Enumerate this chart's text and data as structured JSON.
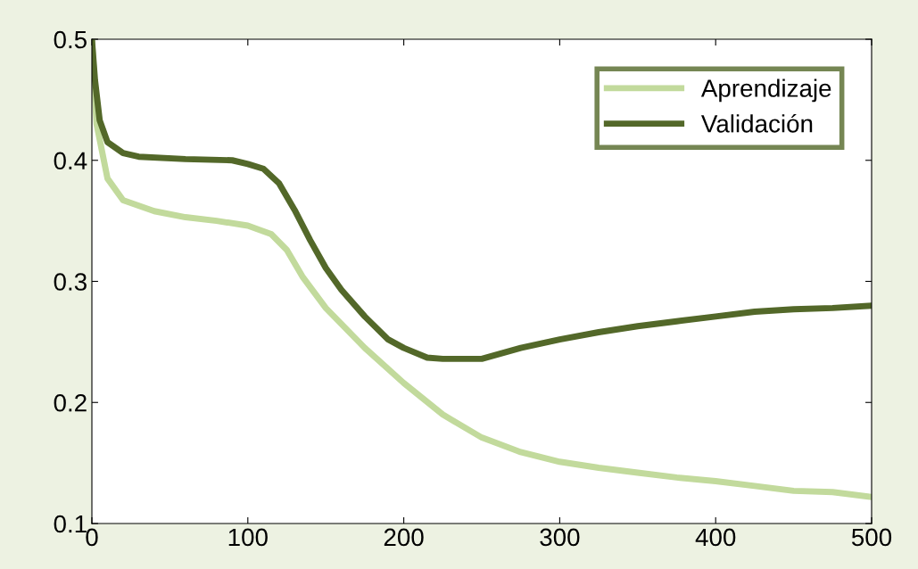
{
  "chart_data": {
    "type": "line",
    "xlim": [
      0,
      500
    ],
    "ylim": [
      0.1,
      0.5
    ],
    "xticks": [
      0,
      100,
      200,
      300,
      400,
      500
    ],
    "yticks": [
      0.1,
      0.2,
      0.3,
      0.4,
      0.5
    ],
    "grid": false,
    "legend": "top right",
    "marker": "none",
    "line_style": "solid",
    "series": [
      {
        "name": "Aprendizaje",
        "color": "#c2da9c",
        "x": [
          0,
          3,
          10,
          20,
          40,
          60,
          80,
          100,
          115,
          125,
          135,
          150,
          175,
          200,
          225,
          250,
          275,
          300,
          325,
          350,
          375,
          400,
          425,
          450,
          475,
          500
        ],
        "values": [
          0.5,
          0.43,
          0.385,
          0.367,
          0.358,
          0.353,
          0.35,
          0.346,
          0.339,
          0.326,
          0.304,
          0.278,
          0.245,
          0.216,
          0.19,
          0.171,
          0.159,
          0.151,
          0.146,
          0.142,
          0.138,
          0.135,
          0.131,
          0.127,
          0.126,
          0.122
        ]
      },
      {
        "name": "Validación",
        "color": "#536829",
        "x": [
          0,
          2,
          5,
          10,
          20,
          30,
          60,
          90,
          100,
          110,
          120,
          130,
          140,
          150,
          160,
          175,
          190,
          200,
          215,
          225,
          250,
          275,
          300,
          325,
          350,
          375,
          400,
          425,
          450,
          475,
          500
        ],
        "values": [
          0.5,
          0.466,
          0.433,
          0.415,
          0.406,
          0.403,
          0.401,
          0.4,
          0.397,
          0.393,
          0.381,
          0.359,
          0.334,
          0.311,
          0.293,
          0.271,
          0.252,
          0.245,
          0.237,
          0.236,
          0.236,
          0.245,
          0.252,
          0.258,
          0.263,
          0.267,
          0.271,
          0.275,
          0.277,
          0.278,
          0.28
        ]
      }
    ]
  }
}
